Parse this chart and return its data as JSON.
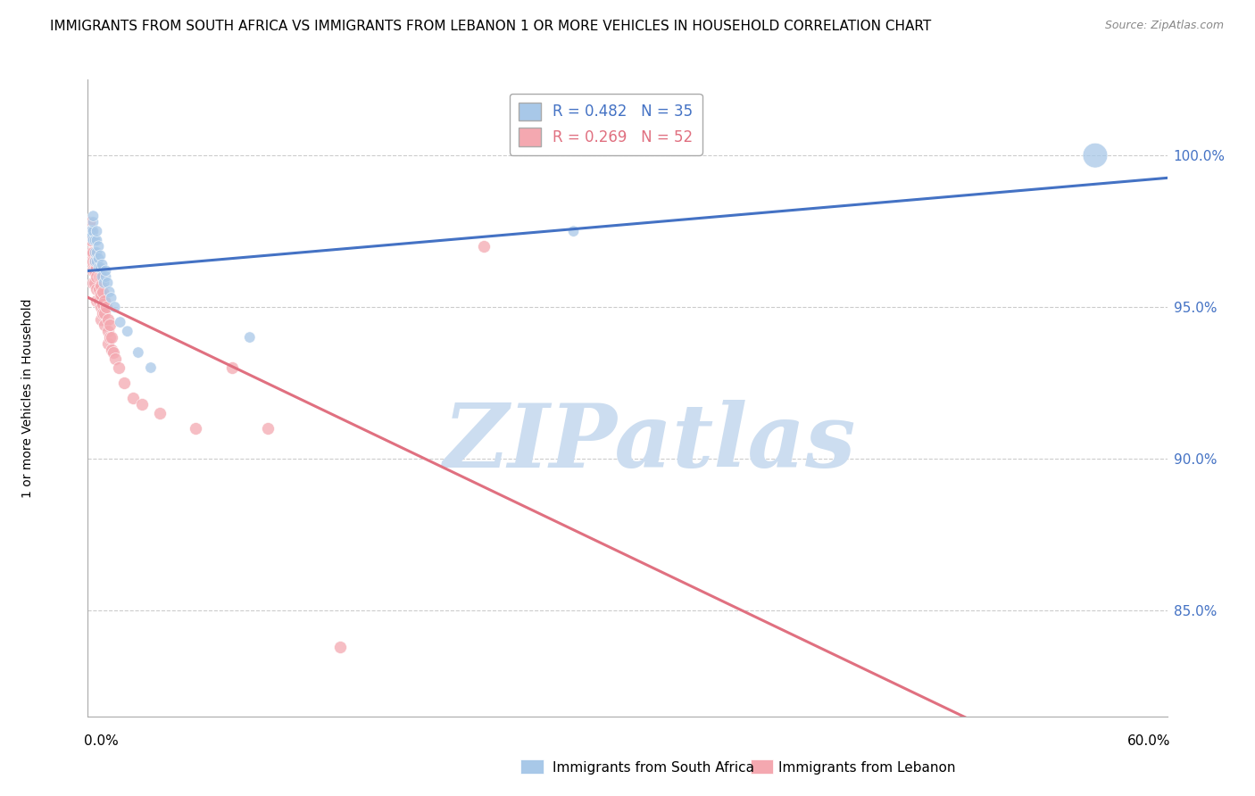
{
  "title": "IMMIGRANTS FROM SOUTH AFRICA VS IMMIGRANTS FROM LEBANON 1 OR MORE VEHICLES IN HOUSEHOLD CORRELATION CHART",
  "source": "Source: ZipAtlas.com",
  "ylabel": "1 or more Vehicles in Household",
  "y_ticks": [
    0.85,
    0.9,
    0.95,
    1.0
  ],
  "y_tick_labels": [
    "85.0%",
    "90.0%",
    "95.0%",
    "100.0%"
  ],
  "x_min": 0.0,
  "x_max": 0.6,
  "y_min": 0.815,
  "y_max": 1.025,
  "legend1_label": "R = 0.482   N = 35",
  "legend2_label": "R = 0.269   N = 52",
  "legend1_color": "#a8c8e8",
  "legend2_color": "#f4a8b0",
  "legend1_line_color": "#4472c4",
  "legend2_line_color": "#e07080",
  "bottom_legend1": "Immigrants from South Africa",
  "bottom_legend2": "Immigrants from Lebanon",
  "south_africa_x": [
    0.001,
    0.002,
    0.002,
    0.003,
    0.003,
    0.003,
    0.003,
    0.004,
    0.004,
    0.004,
    0.005,
    0.005,
    0.005,
    0.005,
    0.006,
    0.006,
    0.006,
    0.007,
    0.007,
    0.008,
    0.008,
    0.009,
    0.01,
    0.01,
    0.011,
    0.012,
    0.013,
    0.015,
    0.018,
    0.022,
    0.028,
    0.035,
    0.09,
    0.27,
    0.56
  ],
  "south_africa_y": [
    0.975,
    0.975,
    0.973,
    0.972,
    0.975,
    0.978,
    0.98,
    0.965,
    0.968,
    0.972,
    0.965,
    0.968,
    0.972,
    0.975,
    0.963,
    0.966,
    0.97,
    0.963,
    0.967,
    0.96,
    0.964,
    0.958,
    0.96,
    0.962,
    0.958,
    0.955,
    0.953,
    0.95,
    0.945,
    0.942,
    0.935,
    0.93,
    0.94,
    0.975,
    1.0
  ],
  "south_africa_sizes": [
    80,
    80,
    80,
    80,
    80,
    80,
    80,
    80,
    80,
    80,
    80,
    80,
    80,
    80,
    80,
    80,
    80,
    80,
    80,
    80,
    80,
    80,
    80,
    80,
    80,
    80,
    80,
    80,
    80,
    80,
    80,
    80,
    80,
    80,
    400
  ],
  "lebanon_x": [
    0.001,
    0.001,
    0.001,
    0.002,
    0.002,
    0.002,
    0.002,
    0.003,
    0.003,
    0.003,
    0.003,
    0.004,
    0.004,
    0.004,
    0.005,
    0.005,
    0.005,
    0.005,
    0.006,
    0.006,
    0.006,
    0.007,
    0.007,
    0.007,
    0.007,
    0.007,
    0.008,
    0.008,
    0.008,
    0.009,
    0.009,
    0.009,
    0.01,
    0.011,
    0.011,
    0.011,
    0.012,
    0.012,
    0.013,
    0.013,
    0.014,
    0.015,
    0.017,
    0.02,
    0.025,
    0.03,
    0.04,
    0.06,
    0.14,
    0.22,
    0.1,
    0.08
  ],
  "lebanon_y": [
    0.978,
    0.975,
    0.972,
    0.975,
    0.972,
    0.968,
    0.965,
    0.968,
    0.965,
    0.962,
    0.958,
    0.965,
    0.962,
    0.958,
    0.963,
    0.96,
    0.956,
    0.952,
    0.96,
    0.956,
    0.952,
    0.96,
    0.957,
    0.954,
    0.95,
    0.946,
    0.955,
    0.951,
    0.948,
    0.952,
    0.948,
    0.944,
    0.95,
    0.946,
    0.942,
    0.938,
    0.944,
    0.94,
    0.94,
    0.936,
    0.935,
    0.933,
    0.93,
    0.925,
    0.92,
    0.918,
    0.915,
    0.91,
    0.838,
    0.97,
    0.91,
    0.93
  ],
  "watermark_text": "ZIPatlas",
  "watermark_color": "#ccddf0",
  "background_color": "#ffffff",
  "title_fontsize": 11,
  "source_fontsize": 9,
  "tick_fontsize": 11,
  "ylabel_fontsize": 10,
  "legend_fontsize": 12
}
